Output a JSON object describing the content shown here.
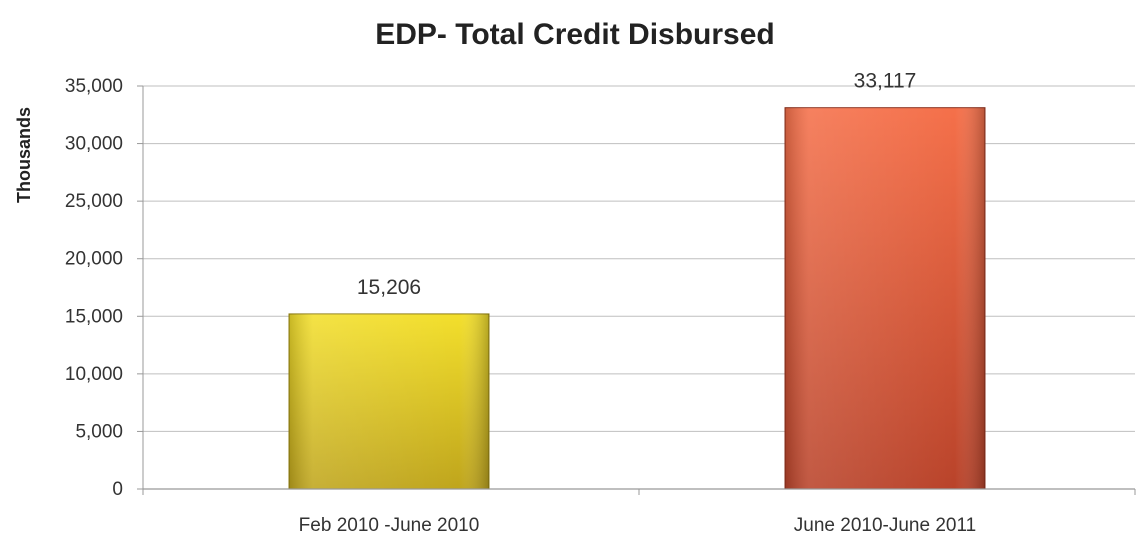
{
  "chart_data": {
    "type": "bar",
    "title": "EDP- Total Credit Disbursed",
    "xlabel": "",
    "ylabel": "Thousands",
    "categories": [
      "Feb 2010 -June 2010",
      "June 2010-June 2011"
    ],
    "values": [
      15206,
      33117
    ],
    "data_labels": [
      "15,206",
      "33,117"
    ],
    "ylim": [
      0,
      35000
    ],
    "yticks": [
      0,
      5000,
      10000,
      15000,
      20000,
      25000,
      30000,
      35000
    ],
    "ytick_labels": [
      "0",
      "5,000",
      "10,000",
      "15,000",
      "20,000",
      "25,000",
      "30,000",
      "35,000"
    ],
    "grid": true,
    "legend": "none",
    "colors": {
      "bars": [
        {
          "top": "#f3df2c",
          "bottom": "#bfa51c",
          "edge": "#8f7d12"
        },
        {
          "top": "#f5704a",
          "bottom": "#b9432a",
          "edge": "#8a2f1c"
        }
      ],
      "grid": "#bfbfbf",
      "axis": "#999999"
    }
  }
}
